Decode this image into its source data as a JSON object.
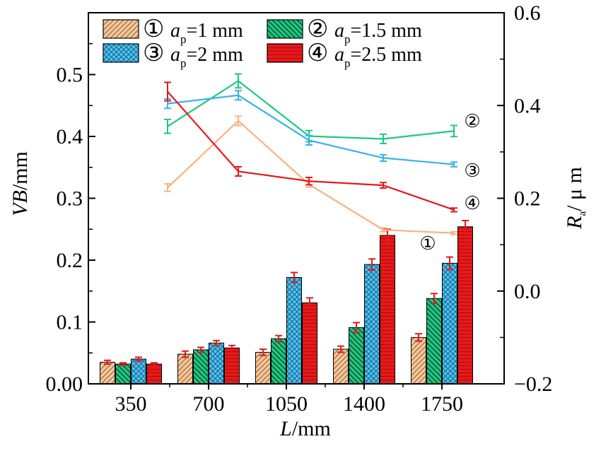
{
  "chart_data": {
    "type": "bar",
    "xlabel_italic": "L",
    "xlabel_unit": "/mm",
    "ylabel_italic": "VB",
    "ylabel_unit": "/mm",
    "y2label_symbol": "R",
    "y2label_sub": "a",
    "y2label_unit": "/ μ m",
    "categories": [
      "350",
      "700",
      "1050",
      "1400",
      "1750"
    ],
    "ylim": [
      0.0,
      0.6
    ],
    "yticks": [
      "0.00",
      "0.1",
      "0.2",
      "0.3",
      "0.4",
      "0.5"
    ],
    "y2lim": [
      -0.2,
      0.6
    ],
    "y2ticks": [
      "−0.2",
      "0.0",
      "0.2",
      "0.4",
      "0.6"
    ],
    "colors": {
      "s1_fill": "#f5c79b",
      "s1_line": "#f5b483",
      "s2_fill": "#1ec882",
      "s2_line": "#1ec882",
      "s3_fill": "#4cc6f4",
      "s3_line": "#3bb0ec",
      "s4_fill": "#e31a1c",
      "s4_line": "#e31a1c",
      "error": "#e31a1c"
    },
    "bar_series": [
      {
        "marker": "①",
        "values": [
          0.035,
          0.048,
          0.051,
          0.056,
          0.075
        ],
        "errors": [
          0.003,
          0.005,
          0.005,
          0.005,
          0.006
        ]
      },
      {
        "marker": "②",
        "values": [
          0.032,
          0.055,
          0.073,
          0.091,
          0.138
        ],
        "errors": [
          0.002,
          0.004,
          0.005,
          0.008,
          0.008
        ]
      },
      {
        "marker": "③",
        "values": [
          0.04,
          0.066,
          0.172,
          0.193,
          0.195
        ],
        "errors": [
          0.003,
          0.004,
          0.008,
          0.009,
          0.01
        ]
      },
      {
        "marker": "④",
        "values": [
          0.032,
          0.058,
          0.131,
          0.24,
          0.254
        ],
        "errors": [
          0.002,
          0.004,
          0.008,
          0.01,
          0.01
        ]
      }
    ],
    "line_x_positions": [
      525,
      875,
      1225,
      1575,
      1925
    ],
    "line_x_scale_categories": [
      350,
      700,
      1050,
      1400,
      1750
    ],
    "line_series": [
      {
        "marker": "①",
        "values": [
          0.223,
          0.367,
          0.23,
          0.132,
          0.125
        ],
        "errors": [
          0.008,
          0.01,
          0.006,
          0.004,
          0.003
        ],
        "label_at_end": "①"
      },
      {
        "marker": "②",
        "values": [
          0.355,
          0.453,
          0.334,
          0.328,
          0.345
        ],
        "errors": [
          0.015,
          0.015,
          0.012,
          0.01,
          0.012
        ],
        "label_at_end": "②"
      },
      {
        "marker": "③",
        "values": [
          0.404,
          0.422,
          0.325,
          0.287,
          0.273
        ],
        "errors": [
          0.01,
          0.01,
          0.01,
          0.007,
          0.005
        ],
        "label_at_end": "③"
      },
      {
        "marker": "④",
        "values": [
          0.43,
          0.258,
          0.237,
          0.228,
          0.175
        ],
        "errors": [
          0.02,
          0.01,
          0.008,
          0.006,
          0.004
        ],
        "label_at_end": "④"
      }
    ],
    "legend": [
      {
        "marker": "①",
        "symbol": "a",
        "sub": "p",
        "text": "=1 mm"
      },
      {
        "marker": "②",
        "symbol": "a",
        "sub": "p",
        "text": "=1.5 mm"
      },
      {
        "marker": "③",
        "symbol": "a",
        "sub": "p",
        "text": "=2 mm"
      },
      {
        "marker": "④",
        "symbol": "a",
        "sub": "p",
        "text": "=2.5 mm"
      }
    ],
    "legend_placement": "top-left",
    "grid": false
  }
}
